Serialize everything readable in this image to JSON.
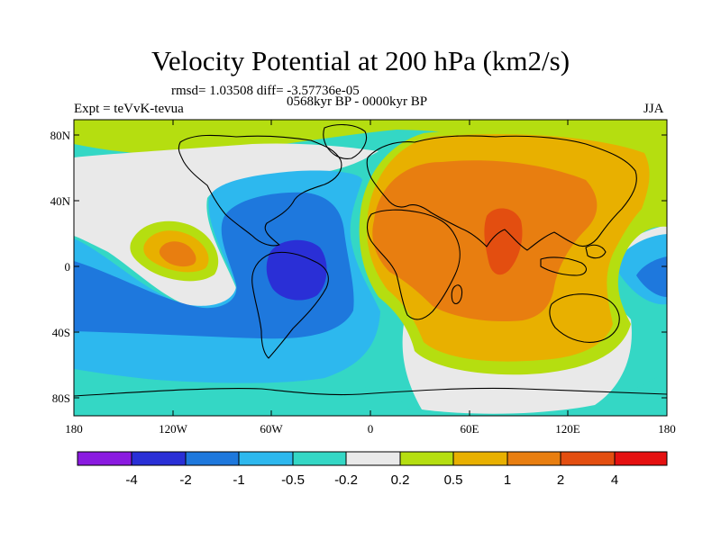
{
  "title": "Velocity Potential at 200 hPa (km2/s)",
  "stats": "rmsd= 1.03508 diff= -3.57736e-05",
  "experiment": "Expt = teVvK-tevua",
  "period": "0568kyr BP - 0000kyr BP",
  "season": "JJA",
  "axes": {
    "x_ticks": [
      "180",
      "120W",
      "60W",
      "0",
      "60E",
      "120E",
      "180"
    ],
    "y_ticks": [
      "80N",
      "40N",
      "0",
      "40S",
      "80S"
    ]
  },
  "colorbar": {
    "labels": [
      "-4",
      "-2",
      "-1",
      "-0.5",
      "-0.2",
      "0.2",
      "0.5",
      "1",
      "2",
      "4"
    ],
    "colors": [
      "#8A1AE0",
      "#2A2FD6",
      "#1E78DD",
      "#2DB8EE",
      "#34D7C5",
      "#E9E9E9",
      "#B5DE10",
      "#E8B000",
      "#E87E10",
      "#E34E10",
      "#E51010"
    ]
  },
  "palette": {
    "c_neg4": "#8A1AE0",
    "c_neg2": "#2A2FD6",
    "c_neg1": "#1E78DD",
    "c_neg05": "#2DB8EE",
    "c_neg02": "#34D7C5",
    "c_zero": "#E9E9E9",
    "c_pos02": "#B5DE10",
    "c_pos05": "#E8B000",
    "c_pos1": "#E87E10",
    "c_pos2": "#E34E10",
    "c_pos4": "#E51010"
  }
}
